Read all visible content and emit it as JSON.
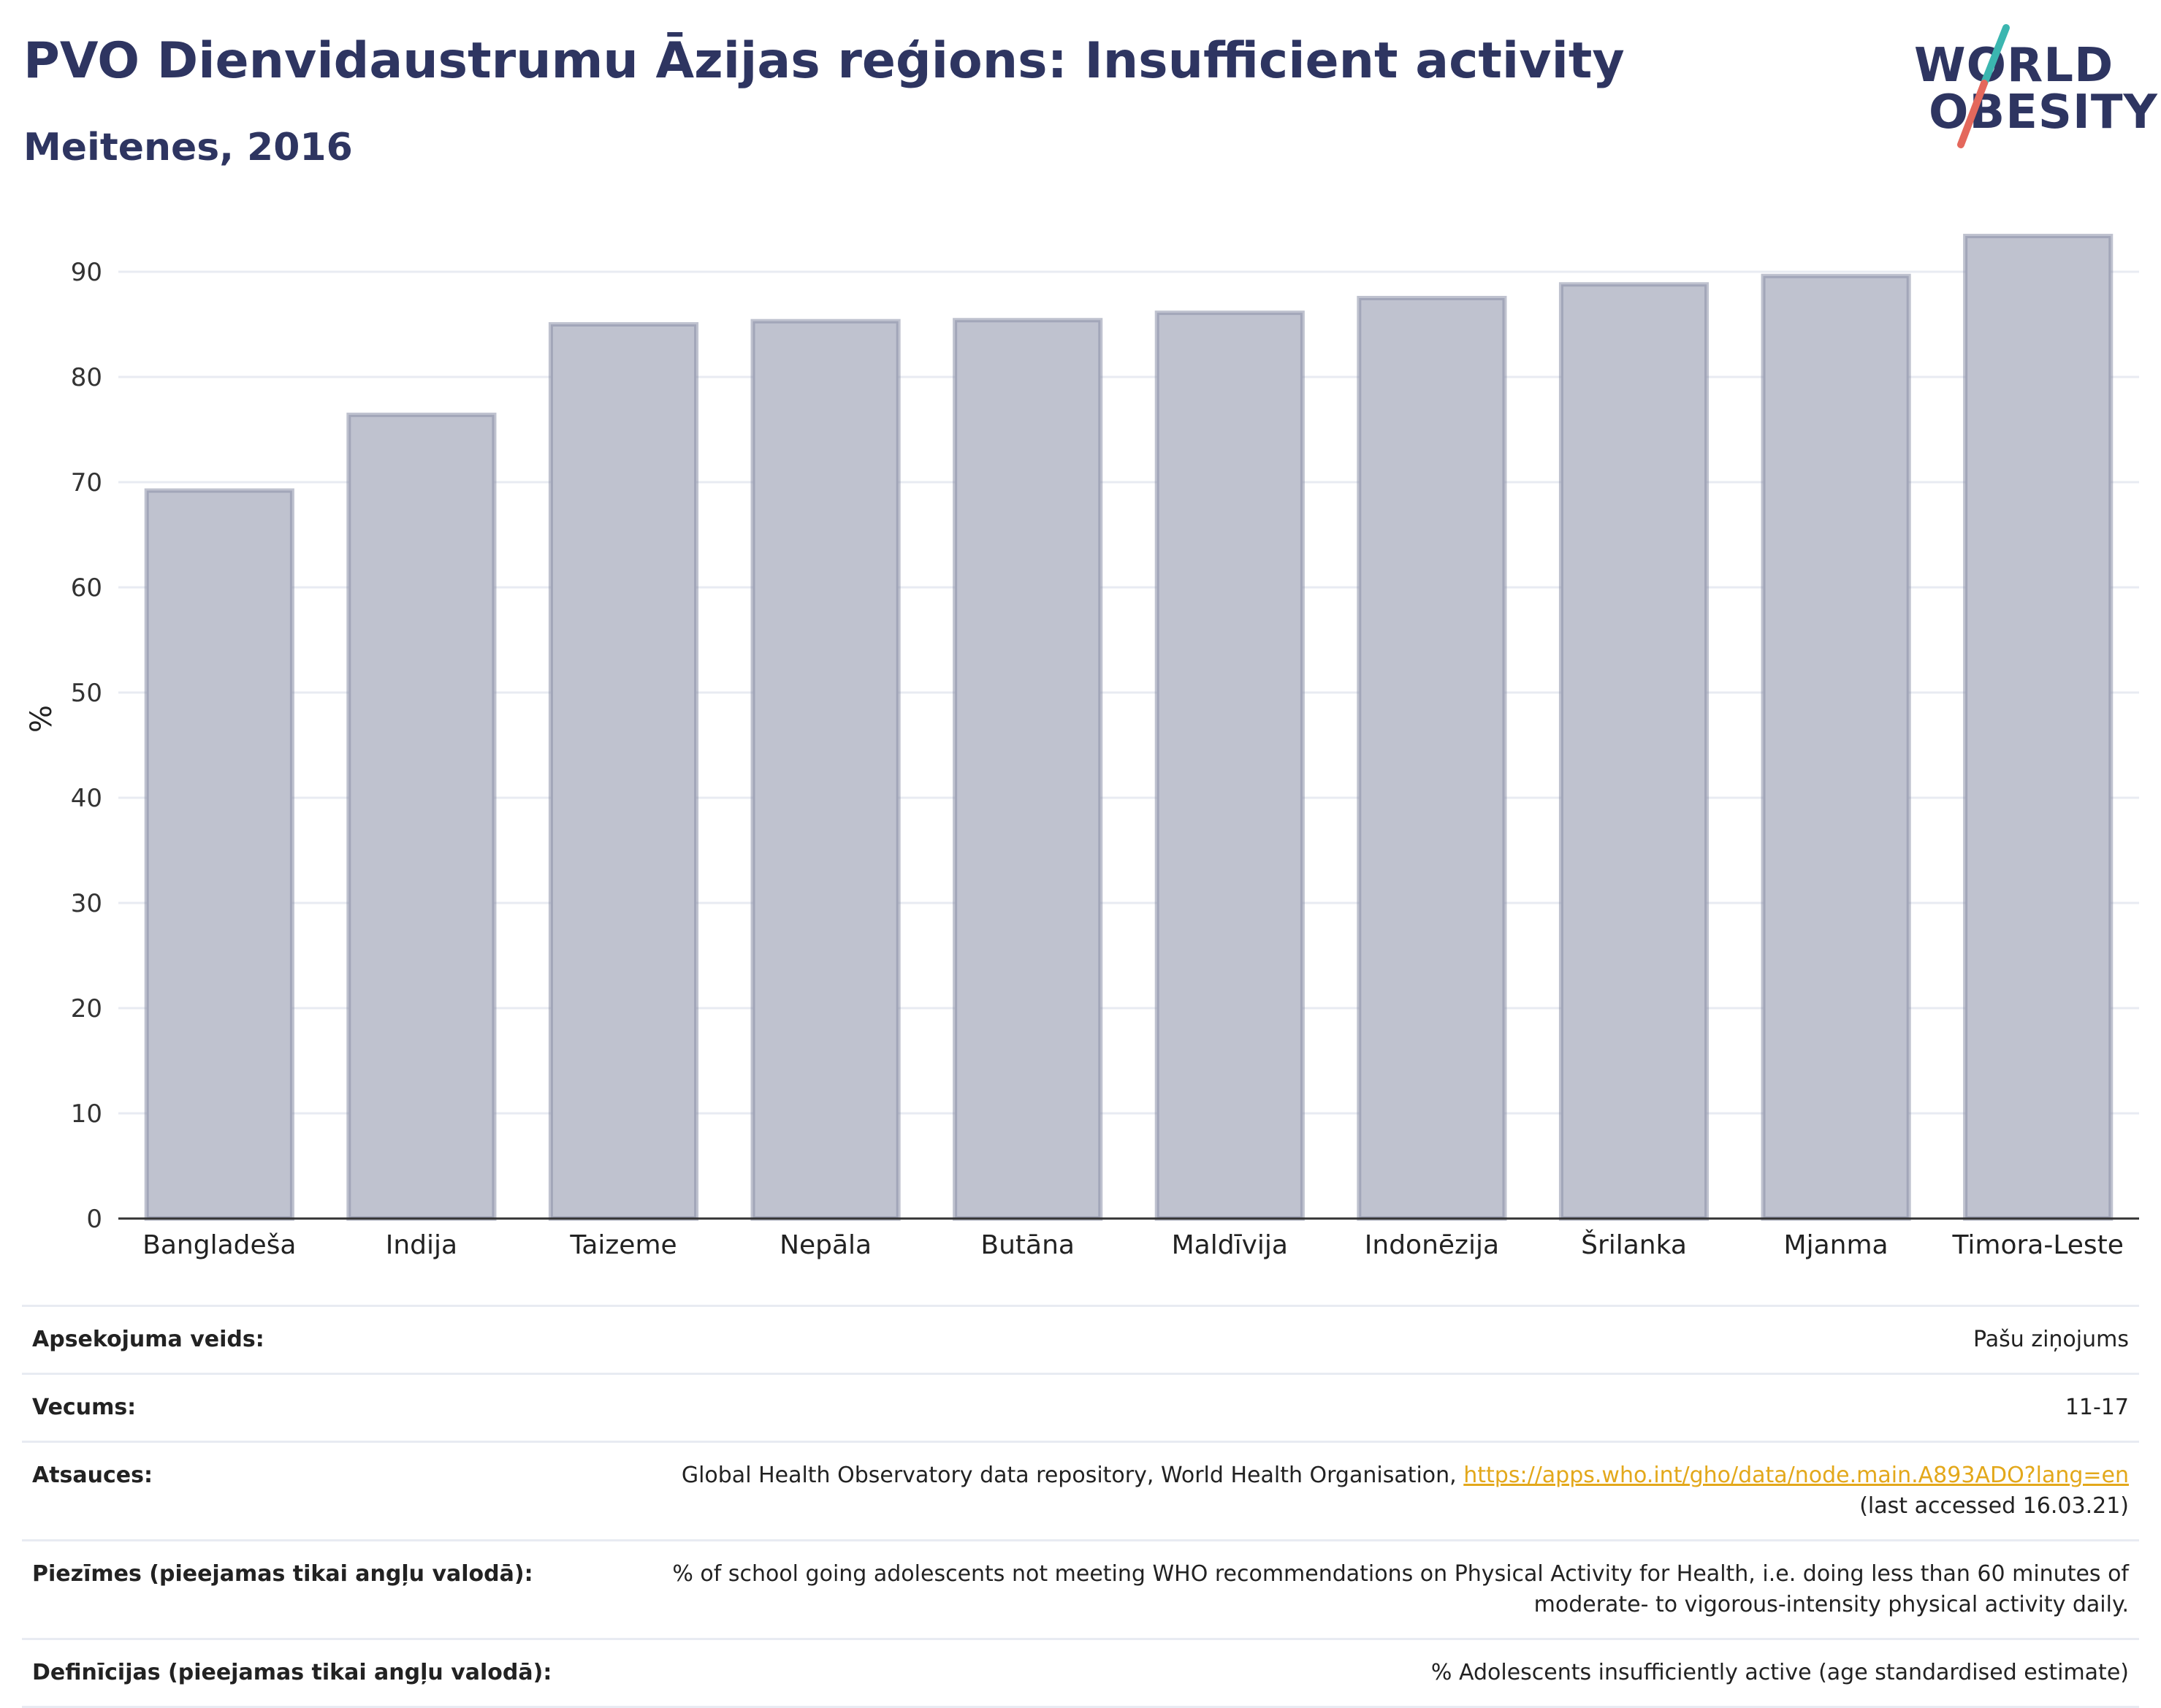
{
  "header": {
    "title": "PVO Dienvidaustrumu Āzijas reģions: Insufficient activity",
    "subtitle": "Meitenes, 2016"
  },
  "logo": {
    "line1": "WORLD",
    "line2": "OBESITY",
    "colors": {
      "text": "#2e3561",
      "slash_top": "#3bb6b0",
      "slash_bottom": "#e4685c"
    }
  },
  "chart_data": {
    "type": "bar",
    "categories": [
      "Bangladeša",
      "Indija",
      "Taizeme",
      "Nepāla",
      "Butāna",
      "Maldīvija",
      "Indonēzija",
      "Šrilanka",
      "Mjanma",
      "Timora-Leste"
    ],
    "values": [
      69.2,
      76.4,
      85.0,
      85.3,
      85.4,
      86.1,
      87.5,
      88.8,
      89.6,
      93.4
    ],
    "ylabel": "%",
    "ylim": [
      0,
      95
    ],
    "yticks": [
      0,
      10,
      20,
      30,
      40,
      50,
      60,
      70,
      80,
      90
    ],
    "grid": true,
    "colors": {
      "bar_fill": "#bfc2cf",
      "bar_stroke": "#8a8fa8",
      "grid": "#e8ebf2",
      "axis": "#333333"
    }
  },
  "meta": [
    {
      "label": "Apsekojuma veids:",
      "value": "Pašu ziņojums"
    },
    {
      "label": "Vecums:",
      "value": "11-17"
    },
    {
      "label": "Atsauces:",
      "value": "Global Health Observatory data repository, World Health Organisation,",
      "link": "https://apps.who.int/gho/data/node.main.A893ADO?lang=en",
      "value2": "(last accessed 16.03.21)"
    },
    {
      "label": "Piezīmes (pieejamas tikai angļu valodā):",
      "value": "% of school going adolescents not meeting WHO recommendations on Physical Activity for Health, i.e. doing less than 60 minutes of",
      "value2": "moderate- to vigorous-intensity physical activity daily."
    },
    {
      "label": "Definīcijas (pieejamas tikai angļu valodā):",
      "value": "% Adolescents insufficiently active (age standardised estimate)"
    }
  ]
}
